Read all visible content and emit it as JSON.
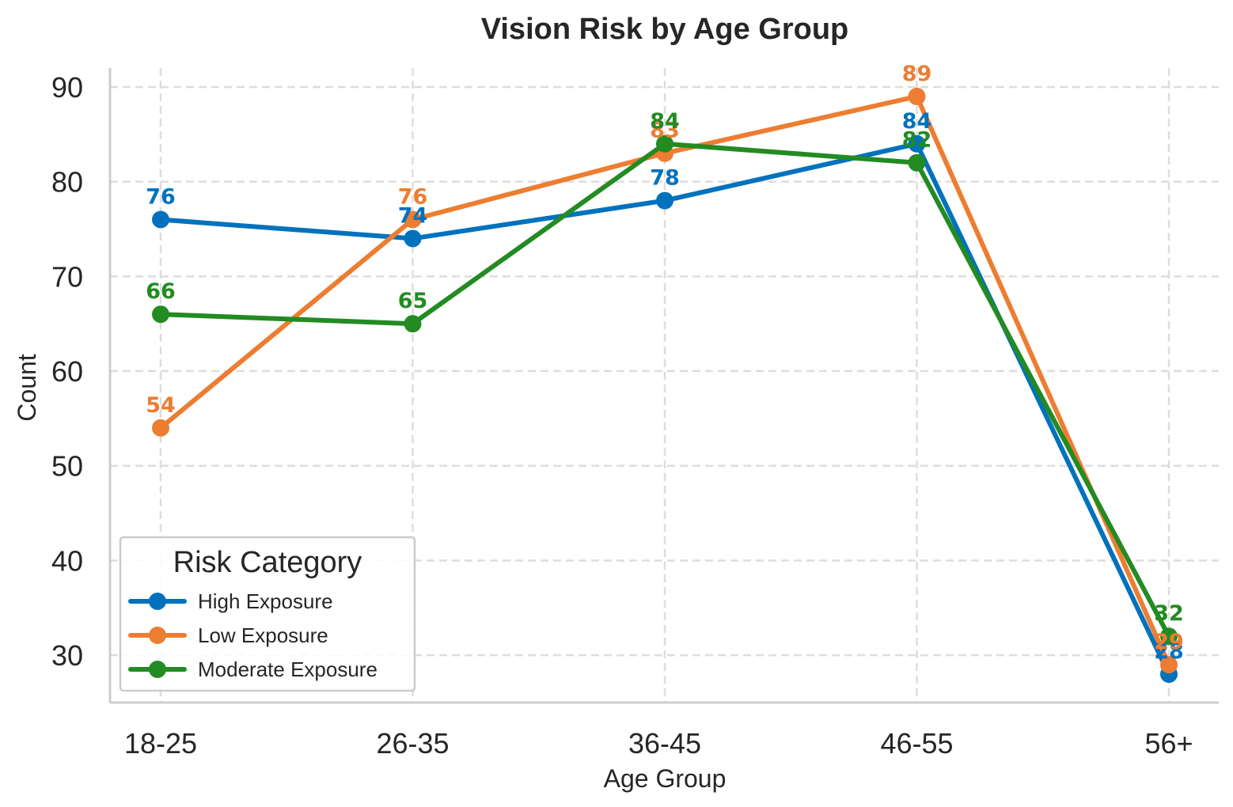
{
  "chart_data": {
    "type": "line",
    "title": "Vision Risk by Age Group",
    "xlabel": "Age Group",
    "ylabel": "Count",
    "categories": [
      "18-25",
      "26-35",
      "36-45",
      "46-55",
      "56+"
    ],
    "ylim": [
      25,
      92
    ],
    "yticks": [
      30,
      40,
      50,
      60,
      70,
      80,
      90
    ],
    "grid": true,
    "legend": {
      "title": "Risk Category",
      "placement": "bottom-left"
    },
    "series": [
      {
        "name": "High Exposure",
        "color": "#0072BD",
        "values": [
          76,
          74,
          78,
          84,
          28
        ]
      },
      {
        "name": "Low Exposure",
        "color": "#ED7D31",
        "values": [
          54,
          76,
          83,
          89,
          29
        ]
      },
      {
        "name": "Moderate Exposure",
        "color": "#228B22",
        "values": [
          66,
          65,
          84,
          82,
          32
        ]
      }
    ]
  }
}
